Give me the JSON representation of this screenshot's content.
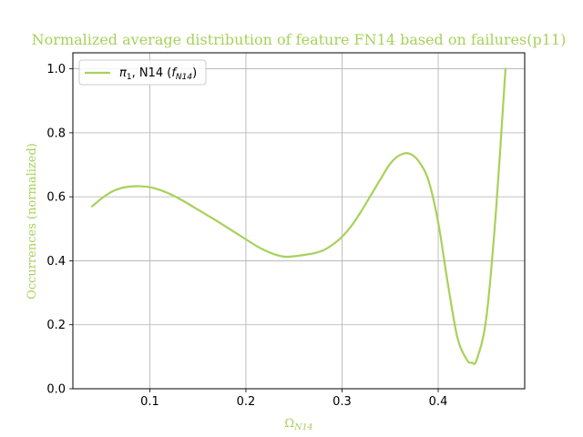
{
  "chart_data": {
    "type": "line",
    "title": "Normalized average distribution of feature FN14 based on failures(p11)",
    "xlabel": {
      "main": "Ω",
      "sub": "N14"
    },
    "ylabel": "Occurrences (normalized)",
    "xlim": [
      0.02,
      0.49
    ],
    "ylim": [
      0.0,
      1.05
    ],
    "xticks": [
      0.1,
      0.2,
      0.3,
      0.4
    ],
    "xtick_labels": [
      "0.1",
      "0.2",
      "0.3",
      "0.4"
    ],
    "yticks": [
      0.0,
      0.2,
      0.4,
      0.6,
      0.8,
      1.0
    ],
    "ytick_labels": [
      "0.0",
      "0.2",
      "0.4",
      "0.6",
      "0.8",
      "1.0"
    ],
    "grid": true,
    "legend_position": "upper-left",
    "colors": {
      "series": "#a8d15a",
      "title": "#a8d15a",
      "grid": "#b0b0b0",
      "axis": "#000000"
    },
    "series": [
      {
        "legend": {
          "pi": "π",
          "pi_sub": "1",
          "mid": ", N14 (",
          "f": "f",
          "f_sub": "N14",
          "end": ")"
        },
        "x": [
          0.04,
          0.05,
          0.06,
          0.07,
          0.08,
          0.09,
          0.1,
          0.11,
          0.12,
          0.13,
          0.14,
          0.15,
          0.16,
          0.17,
          0.18,
          0.19,
          0.2,
          0.21,
          0.22,
          0.23,
          0.24,
          0.25,
          0.26,
          0.27,
          0.28,
          0.29,
          0.3,
          0.31,
          0.32,
          0.33,
          0.34,
          0.35,
          0.36,
          0.37,
          0.38,
          0.39,
          0.4,
          0.41,
          0.42,
          0.43,
          0.435,
          0.44,
          0.45,
          0.46,
          0.47
        ],
        "y": [
          0.57,
          0.595,
          0.615,
          0.627,
          0.632,
          0.633,
          0.63,
          0.622,
          0.61,
          0.595,
          0.578,
          0.56,
          0.542,
          0.524,
          0.505,
          0.486,
          0.467,
          0.448,
          0.432,
          0.42,
          0.413,
          0.414,
          0.418,
          0.423,
          0.432,
          0.45,
          0.475,
          0.51,
          0.555,
          0.605,
          0.655,
          0.703,
          0.73,
          0.735,
          0.71,
          0.65,
          0.52,
          0.33,
          0.16,
          0.09,
          0.082,
          0.09,
          0.22,
          0.55,
          1.0
        ]
      }
    ]
  }
}
